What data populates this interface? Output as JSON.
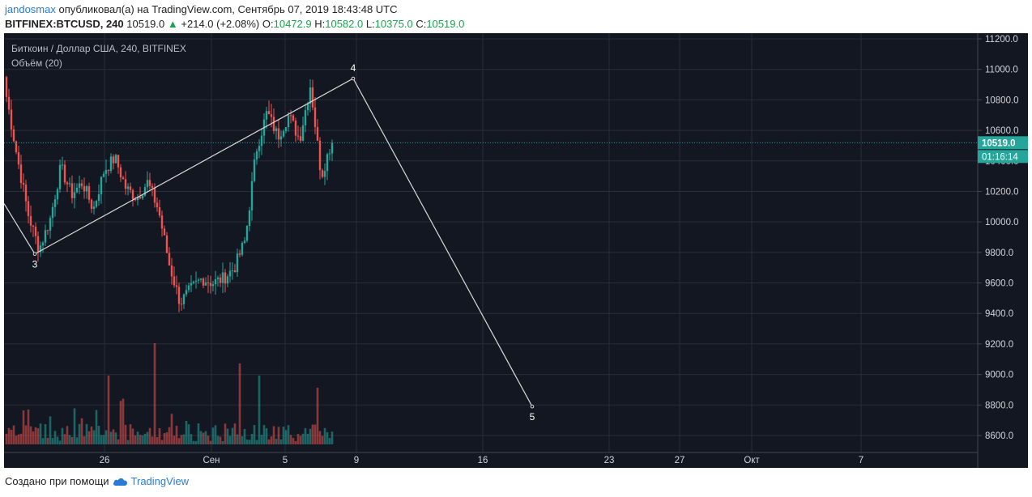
{
  "header": {
    "user": "jandosmax",
    "published": "опубликовал(а) на TradingView.com, Сентябрь 07, 2019 18:43:48 UTC",
    "symbol": "BITFINEX:BTCUSD, 240",
    "last": "10519.0",
    "arrow": "▲",
    "change": "+214.0 (+2.08%)",
    "o_label": "O:",
    "o": "10472.9",
    "h_label": "H:",
    "h": "10582.0",
    "l_label": "L:",
    "l": "10375.0",
    "c_label": "C:",
    "c": "10519.0"
  },
  "legend": {
    "title": "Биткоин / Доллар США, 240, BITFINEX",
    "volume": "Объём (20)"
  },
  "footer": {
    "created": "Создано при помощи",
    "brand": "TradingView"
  },
  "colors": {
    "background": "#131722",
    "grid": "#2a2e39",
    "up": "#26a69a",
    "down": "#ef5350",
    "price_line": "#26a69a",
    "wave_line": "#d9d9d9"
  },
  "chart_data": {
    "type": "candlestick",
    "y_axis": {
      "range": [
        8550,
        11230
      ],
      "ticks": [
        "11200.0",
        "11000.0",
        "10800.0",
        "10600.0",
        "10400.0",
        "10200.0",
        "10000.0",
        "9800.0",
        "9600.0",
        "9400.0",
        "9200.0",
        "9000.0",
        "8800.0",
        "8600.0"
      ]
    },
    "x_axis": {
      "ticks": [
        "26",
        "Сен",
        "5",
        "9",
        "16",
        "23",
        "27",
        "Окт",
        "7"
      ]
    },
    "current_price": {
      "value": 10519.0,
      "label": "10519.0",
      "timer": "01:16:14"
    },
    "wave_points": [
      {
        "label": "",
        "price": 10120
      },
      {
        "label": "3",
        "price": 9790
      },
      {
        "label": "4",
        "price": 10940
      },
      {
        "label": "5",
        "price": 8790
      }
    ],
    "anchors": [
      {
        "price": 10820
      },
      {
        "price": 10420
      },
      {
        "price": 10050
      },
      {
        "price": 9820
      },
      {
        "price": 10010
      },
      {
        "price": 10360
      },
      {
        "price": 10180
      },
      {
        "price": 10260
      },
      {
        "price": 10080
      },
      {
        "price": 10340
      },
      {
        "price": 10420
      },
      {
        "price": 10220
      },
      {
        "price": 10160
      },
      {
        "price": 10260
      },
      {
        "price": 10080
      },
      {
        "price": 9720
      },
      {
        "price": 9470
      },
      {
        "price": 9560
      },
      {
        "price": 9630
      },
      {
        "price": 9600
      },
      {
        "price": 9630
      },
      {
        "price": 9700
      },
      {
        "price": 9880
      },
      {
        "price": 10470
      },
      {
        "price": 10720
      },
      {
        "price": 10560
      },
      {
        "price": 10700
      },
      {
        "price": 10540
      },
      {
        "price": 10900
      },
      {
        "price": 10300
      },
      {
        "price": 10540
      }
    ],
    "volume": {
      "max_bar": "tall spike near 28",
      "note": ""
    }
  }
}
